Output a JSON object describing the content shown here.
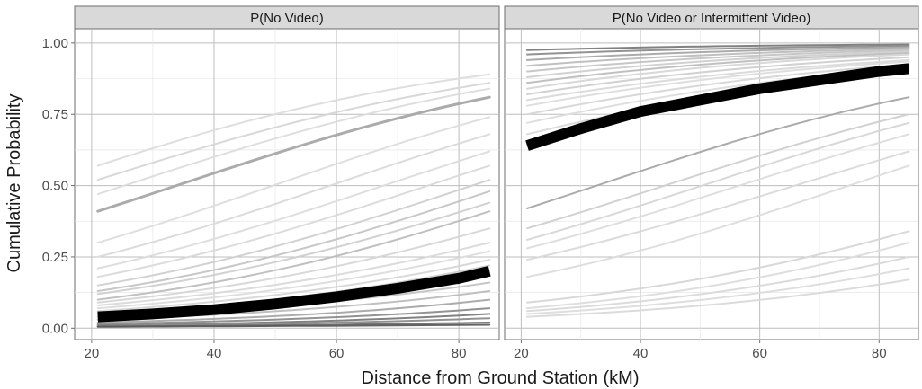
{
  "figure": {
    "ylabel": "Cumulative Probability",
    "xlabel": "Distance from Ground Station (kM)"
  },
  "chart_data": [
    {
      "type": "line",
      "panel_title": "P(No Video)",
      "xlim": [
        20,
        85
      ],
      "ylim": [
        0,
        1
      ],
      "x_ticks": [
        20,
        40,
        60,
        80
      ],
      "y_ticks": [
        0,
        0.25,
        0.5,
        0.75,
        1
      ],
      "y_tick_labels": [
        "0.00",
        "0.25",
        "0.50",
        "0.75",
        "1.00"
      ],
      "grid": true,
      "x": [
        21,
        85
      ],
      "highlight": {
        "x": [
          21,
          30,
          40,
          50,
          60,
          70,
          80,
          85
        ],
        "y": [
          0.04,
          0.05,
          0.065,
          0.085,
          0.11,
          0.14,
          0.175,
          0.2
        ]
      },
      "series": [
        {
          "start": 0.41,
          "end": 0.81,
          "shade": "#a6a6a6",
          "width": 3
        },
        {
          "start": 0.57,
          "end": 0.89,
          "shade": "#dcdcdc",
          "width": 2
        },
        {
          "start": 0.52,
          "end": 0.86,
          "shade": "#d6d6d6",
          "width": 2
        },
        {
          "start": 0.47,
          "end": 0.84,
          "shade": "#dcdcdc",
          "width": 2
        },
        {
          "start": 0.3,
          "end": 0.74,
          "shade": "#dcdcdc",
          "width": 2
        },
        {
          "start": 0.25,
          "end": 0.68,
          "shade": "#d9d9d9",
          "width": 2
        },
        {
          "start": 0.21,
          "end": 0.62,
          "shade": "#dcdcdc",
          "width": 2
        },
        {
          "start": 0.18,
          "end": 0.57,
          "shade": "#d9d9d9",
          "width": 2
        },
        {
          "start": 0.15,
          "end": 0.52,
          "shade": "#cfcfcf",
          "width": 2
        },
        {
          "start": 0.13,
          "end": 0.48,
          "shade": "#c4c4c4",
          "width": 2
        },
        {
          "start": 0.12,
          "end": 0.44,
          "shade": "#cfcfcf",
          "width": 2
        },
        {
          "start": 0.1,
          "end": 0.41,
          "shade": "#bdbdbd",
          "width": 2
        },
        {
          "start": 0.09,
          "end": 0.35,
          "shade": "#d6d6d6",
          "width": 2
        },
        {
          "start": 0.08,
          "end": 0.3,
          "shade": "#d9d9d9",
          "width": 2
        },
        {
          "start": 0.07,
          "end": 0.27,
          "shade": "#dcdcdc",
          "width": 2
        },
        {
          "start": 0.06,
          "end": 0.24,
          "shade": "#d6d6d6",
          "width": 2
        },
        {
          "start": 0.05,
          "end": 0.22,
          "shade": "#cfcfcf",
          "width": 2
        },
        {
          "start": 0.04,
          "end": 0.16,
          "shade": "#c4c4c4",
          "width": 2
        },
        {
          "start": 0.03,
          "end": 0.13,
          "shade": "#bdbdbd",
          "width": 2
        },
        {
          "start": 0.02,
          "end": 0.1,
          "shade": "#a6a6a6",
          "width": 2
        },
        {
          "start": 0.015,
          "end": 0.07,
          "shade": "#8c8c8c",
          "width": 2
        },
        {
          "start": 0.01,
          "end": 0.05,
          "shade": "#7a7a7a",
          "width": 2
        },
        {
          "start": 0.008,
          "end": 0.035,
          "shade": "#8c8c8c",
          "width": 2
        },
        {
          "start": 0.006,
          "end": 0.02,
          "shade": "#6e6e6e",
          "width": 2
        },
        {
          "start": 0.005,
          "end": 0.012,
          "shade": "#5a5a5a",
          "width": 2
        }
      ]
    },
    {
      "type": "line",
      "panel_title": "P(No Video or Intermittent Video)",
      "xlim": [
        20,
        85
      ],
      "ylim": [
        0,
        1
      ],
      "x_ticks": [
        20,
        40,
        60,
        80
      ],
      "y_ticks": [
        0,
        0.25,
        0.5,
        0.75,
        1
      ],
      "grid": true,
      "x": [
        21,
        85
      ],
      "highlight": {
        "x": [
          21,
          30,
          40,
          50,
          60,
          70,
          80,
          85
        ],
        "y": [
          0.64,
          0.7,
          0.76,
          0.8,
          0.84,
          0.87,
          0.9,
          0.91
        ]
      },
      "series": [
        {
          "start": 0.975,
          "end": 0.995,
          "shade": "#7a7a7a",
          "width": 2
        },
        {
          "start": 0.96,
          "end": 0.99,
          "shade": "#8c8c8c",
          "width": 2
        },
        {
          "start": 0.94,
          "end": 0.985,
          "shade": "#a6a6a6",
          "width": 2
        },
        {
          "start": 0.92,
          "end": 0.98,
          "shade": "#bdbdbd",
          "width": 2
        },
        {
          "start": 0.9,
          "end": 0.975,
          "shade": "#c4c4c4",
          "width": 2
        },
        {
          "start": 0.88,
          "end": 0.97,
          "shade": "#cfcfcf",
          "width": 2
        },
        {
          "start": 0.86,
          "end": 0.965,
          "shade": "#bdbdbd",
          "width": 2
        },
        {
          "start": 0.84,
          "end": 0.96,
          "shade": "#d6d6d6",
          "width": 2
        },
        {
          "start": 0.82,
          "end": 0.95,
          "shade": "#cfcfcf",
          "width": 2
        },
        {
          "start": 0.8,
          "end": 0.94,
          "shade": "#d9d9d9",
          "width": 2
        },
        {
          "start": 0.78,
          "end": 0.935,
          "shade": "#dcdcdc",
          "width": 2
        },
        {
          "start": 0.75,
          "end": 0.925,
          "shade": "#d6d6d6",
          "width": 2
        },
        {
          "start": 0.72,
          "end": 0.915,
          "shade": "#dcdcdc",
          "width": 2
        },
        {
          "start": 0.68,
          "end": 0.905,
          "shade": "#d9d9d9",
          "width": 2
        },
        {
          "start": 0.42,
          "end": 0.81,
          "shade": "#a6a6a6",
          "width": 2
        },
        {
          "start": 0.35,
          "end": 0.75,
          "shade": "#cfcfcf",
          "width": 2
        },
        {
          "start": 0.31,
          "end": 0.72,
          "shade": "#d6d6d6",
          "width": 2
        },
        {
          "start": 0.28,
          "end": 0.68,
          "shade": "#dcdcdc",
          "width": 2
        },
        {
          "start": 0.24,
          "end": 0.62,
          "shade": "#d9d9d9",
          "width": 2
        },
        {
          "start": 0.18,
          "end": 0.57,
          "shade": "#dcdcdc",
          "width": 2
        },
        {
          "start": 0.09,
          "end": 0.34,
          "shade": "#d6d6d6",
          "width": 2
        },
        {
          "start": 0.07,
          "end": 0.3,
          "shade": "#dcdcdc",
          "width": 2
        },
        {
          "start": 0.06,
          "end": 0.25,
          "shade": "#d9d9d9",
          "width": 2
        },
        {
          "start": 0.05,
          "end": 0.21,
          "shade": "#dcdcdc",
          "width": 2
        },
        {
          "start": 0.04,
          "end": 0.17,
          "shade": "#d9d9d9",
          "width": 2
        }
      ]
    }
  ]
}
